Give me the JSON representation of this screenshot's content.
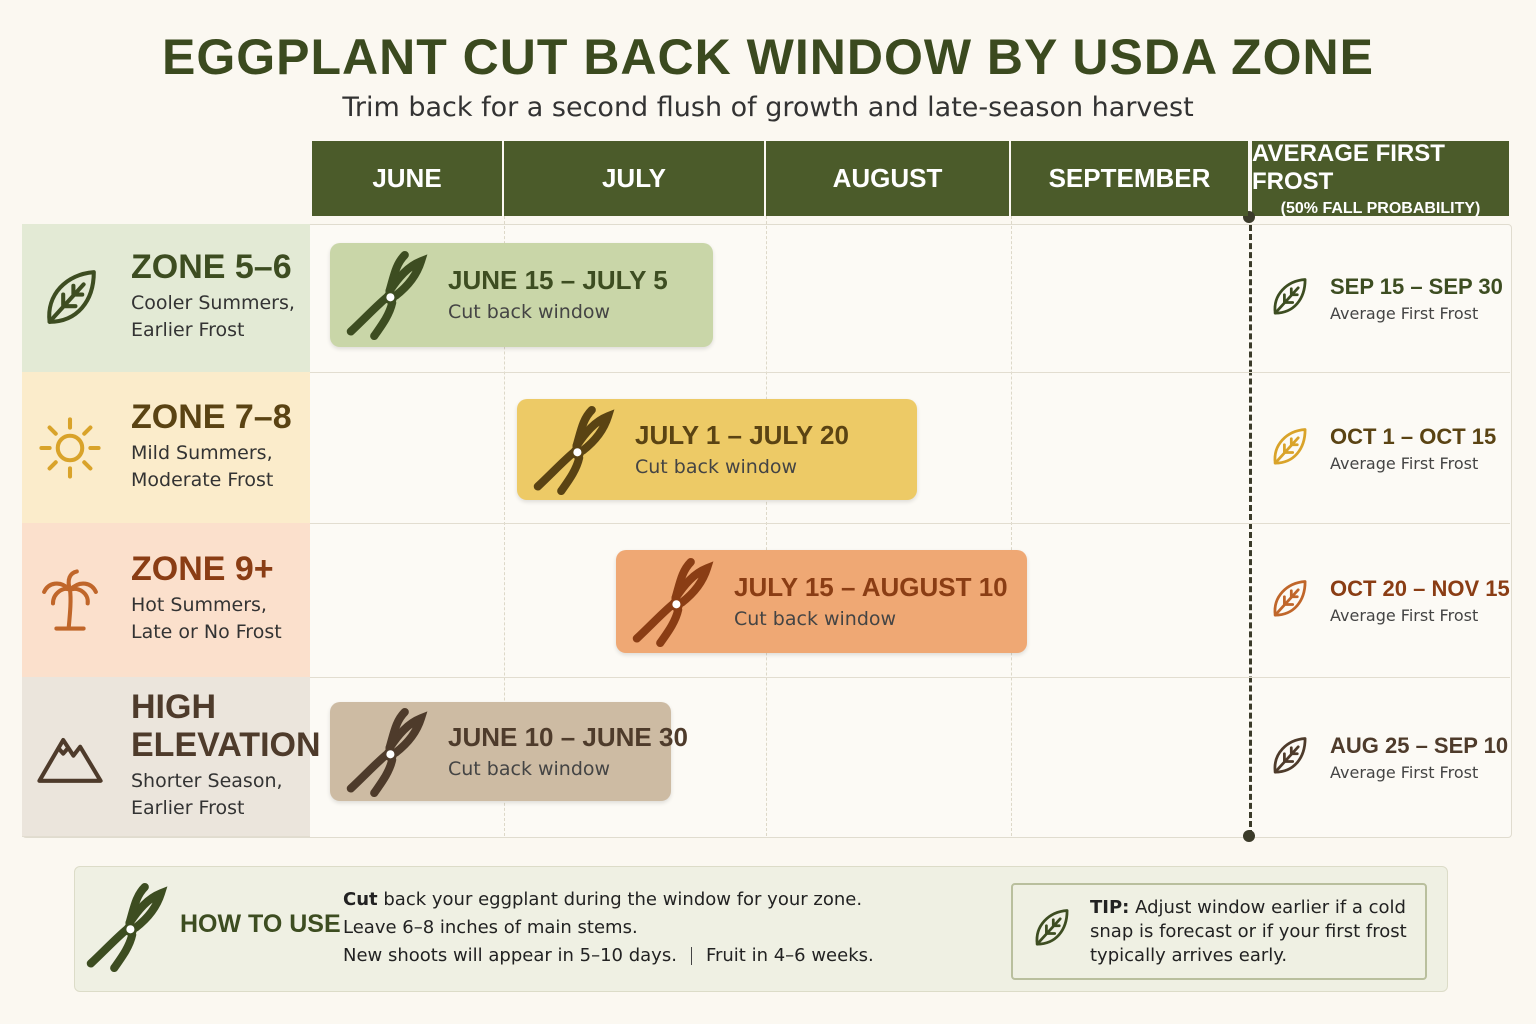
{
  "header": {
    "title": "EGGPLANT CUT BACK WINDOW BY USDA ZONE",
    "subtitle": "Trim back for a second flush of growth and late-season harvest"
  },
  "months": [
    "JUNE",
    "JULY",
    "AUGUST",
    "SEPTEMBER"
  ],
  "frost_header": {
    "title": "AVERAGE FIRST FROST",
    "subtitle": "(50% FALL PROBABILITY)"
  },
  "zones": [
    {
      "name": "ZONE 5–6",
      "description": [
        "Cooler Summers,",
        "Earlier Frost"
      ],
      "window": "JUNE 15 – JULY 5",
      "window_label": "Cut back window",
      "frost": "SEP 15 – SEP 30",
      "frost_label": "Average First Frost"
    },
    {
      "name": "ZONE 7–8",
      "description": [
        "Mild Summers,",
        "Moderate Frost"
      ],
      "window": "JULY 1 – JULY 20",
      "window_label": "Cut back window",
      "frost": "OCT 1 – OCT 15",
      "frost_label": "Average First Frost"
    },
    {
      "name": "ZONE 9+",
      "description": [
        "Hot Summers,",
        "Late or No Frost"
      ],
      "window": "JULY 15 – AUGUST 10",
      "window_label": "Cut back window",
      "frost": "OCT 20 – NOV 15",
      "frost_label": "Average First Frost"
    },
    {
      "name": "HIGH ELEVATION",
      "description": [
        "Shorter Season,",
        "Earlier Frost"
      ],
      "window": "JUNE 10 – JUNE 30",
      "window_label": "Cut back window",
      "frost": "AUG 25 – SEP 10",
      "frost_label": "Average First Frost"
    }
  ],
  "how_to": {
    "title": "HOW TO USE",
    "bold": "Cut",
    "lines": [
      "back your eggplant during the window for your zone.",
      "Leave 6–8 inches of main stems.",
      "New shoots will appear in 5–10 days."
    ],
    "extra": "Fruit in 4–6 weeks."
  },
  "tip": {
    "bold": "TIP:",
    "text": "Adjust window earlier if a cold snap is forecast or if your first frost typically arrives early."
  }
}
